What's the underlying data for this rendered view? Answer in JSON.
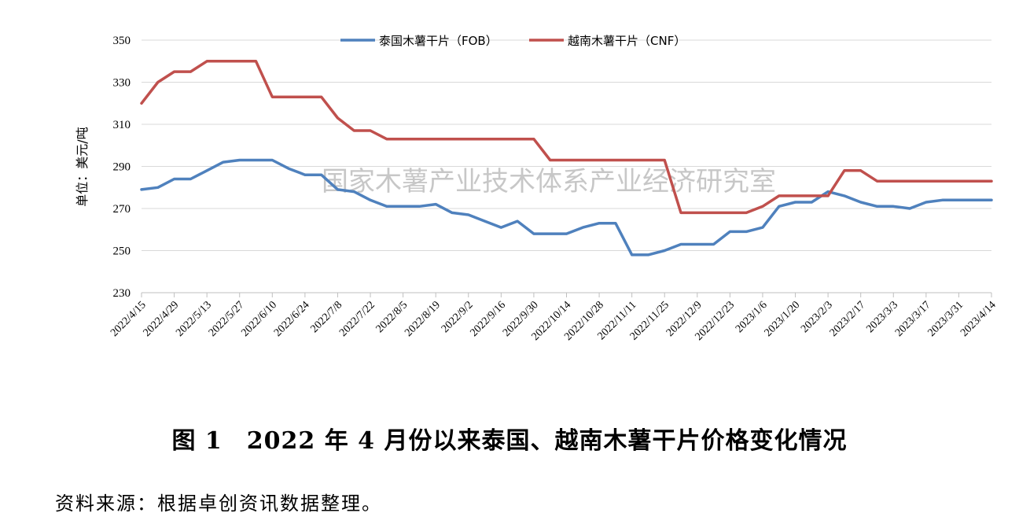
{
  "caption": "图 1　2022 年 4 月份以来泰国、越南木薯干片价格变化情况",
  "source_note": "资料来源：根据卓创资讯数据整理。",
  "watermark": "国家木薯产业技术体系产业经济研究室",
  "chart_data": {
    "type": "line",
    "title": "",
    "xlabel": "",
    "ylabel": "单位：美元/吨",
    "ylim": [
      230,
      350
    ],
    "yticks": [
      230,
      250,
      270,
      290,
      310,
      330,
      350
    ],
    "grid": "horizontal",
    "legend": "top-center",
    "x": [
      "2022/4/15",
      "2022/4/22",
      "2022/4/29",
      "2022/5/6",
      "2022/5/13",
      "2022/5/20",
      "2022/5/27",
      "2022/6/3",
      "2022/6/10",
      "2022/6/17",
      "2022/6/24",
      "2022/7/1",
      "2022/7/8",
      "2022/7/15",
      "2022/7/22",
      "2022/7/29",
      "2022/8/5",
      "2022/8/12",
      "2022/8/19",
      "2022/8/26",
      "2022/9/2",
      "2022/9/9",
      "2022/9/16",
      "2022/9/23",
      "2022/9/30",
      "2022/10/7",
      "2022/10/14",
      "2022/10/21",
      "2022/10/28",
      "2022/11/4",
      "2022/11/11",
      "2022/11/18",
      "2022/11/25",
      "2022/12/2",
      "2022/12/9",
      "2022/12/16",
      "2022/12/23",
      "2022/12/30",
      "2023/1/6",
      "2023/1/13",
      "2023/1/20",
      "2023/1/27",
      "2023/2/3",
      "2023/2/10",
      "2023/2/17",
      "2023/2/24",
      "2023/3/3",
      "2023/3/10",
      "2023/3/17",
      "2023/3/24",
      "2023/3/31",
      "2023/4/7",
      "2023/4/14"
    ],
    "xtick_labels": [
      "2022/4/15",
      "2022/4/29",
      "2022/5/13",
      "2022/5/27",
      "2022/6/10",
      "2022/6/24",
      "2022/7/8",
      "2022/7/22",
      "2022/8/5",
      "2022/8/19",
      "2022/9/2",
      "2022/9/16",
      "2022/9/30",
      "2022/10/14",
      "2022/10/28",
      "2022/11/11",
      "2022/11/25",
      "2022/12/9",
      "2022/12/23",
      "2023/1/6",
      "2023/1/20",
      "2023/2/3",
      "2023/2/17",
      "2023/3/3",
      "2023/3/17",
      "2023/3/31",
      "2023/4/14"
    ],
    "series": [
      {
        "name": "泰国木薯干片（FOB）",
        "color": "#4f81bd",
        "values": [
          279,
          280,
          284,
          284,
          288,
          292,
          293,
          293,
          293,
          289,
          286,
          286,
          279,
          278,
          274,
          271,
          271,
          271,
          272,
          268,
          267,
          264,
          261,
          264,
          258,
          258,
          258,
          261,
          263,
          263,
          248,
          248,
          250,
          253,
          253,
          253,
          259,
          259,
          261,
          271,
          273,
          273,
          278,
          276,
          273,
          271,
          271,
          270,
          273,
          274,
          274,
          274,
          274
        ]
      },
      {
        "name": "越南木薯干片（CNF）",
        "color": "#c0504d",
        "values": [
          320,
          330,
          335,
          335,
          340,
          340,
          340,
          340,
          323,
          323,
          323,
          323,
          313,
          307,
          307,
          303,
          303,
          303,
          303,
          303,
          303,
          303,
          303,
          303,
          303,
          293,
          293,
          293,
          293,
          293,
          293,
          293,
          293,
          268,
          268,
          268,
          268,
          268,
          271,
          276,
          276,
          276,
          276,
          288,
          288,
          283,
          283,
          283,
          283,
          283,
          283,
          283,
          283
        ]
      }
    ]
  }
}
